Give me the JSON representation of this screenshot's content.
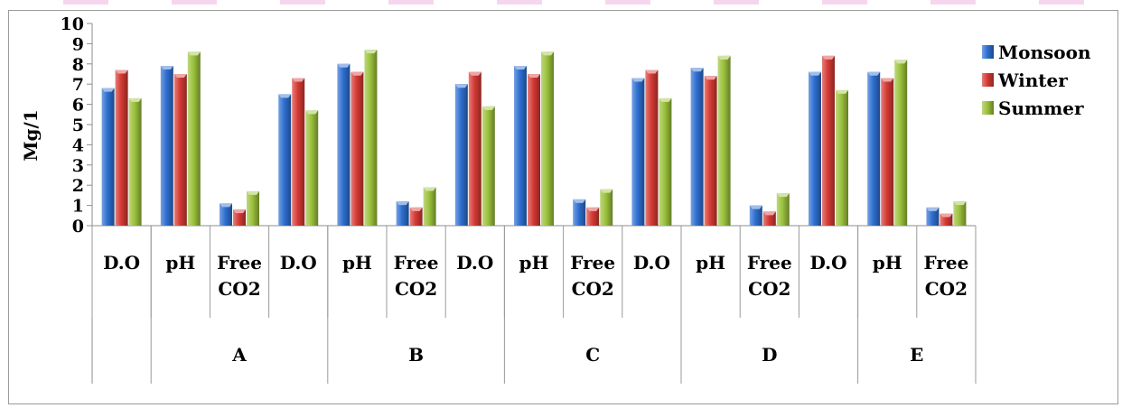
{
  "chart_data": {
    "type": "bar",
    "ylabel": "Mg/1",
    "ylim": [
      0,
      10
    ],
    "yticks": [
      0,
      1,
      2,
      3,
      4,
      5,
      6,
      7,
      8,
      9,
      10
    ],
    "grid": false,
    "legend_position": "right",
    "categories": [
      [
        "D.O"
      ],
      [
        "pH"
      ],
      [
        "Free",
        "CO2"
      ],
      [
        "D.O"
      ],
      [
        "pH"
      ],
      [
        "Free",
        "CO2"
      ],
      [
        "D.O"
      ],
      [
        "pH"
      ],
      [
        "Free",
        "CO2"
      ],
      [
        "D.O"
      ],
      [
        "pH"
      ],
      [
        "Free",
        "CO2"
      ],
      [
        "D.O"
      ],
      [
        "pH"
      ],
      [
        "Free",
        "CO2"
      ]
    ],
    "groups": [
      {
        "label": "",
        "span": 1
      },
      {
        "label": "A",
        "span": 3
      },
      {
        "label": "B",
        "span": 3
      },
      {
        "label": "C",
        "span": 3
      },
      {
        "label": "D",
        "span": 3
      },
      {
        "label": "E",
        "span": 2
      }
    ],
    "series": [
      {
        "name": "Monsoon",
        "color": "#2e6fd1",
        "values": [
          6.8,
          7.9,
          1.1,
          6.5,
          8.0,
          1.2,
          7.0,
          7.9,
          1.3,
          7.3,
          7.8,
          1.0,
          7.6,
          7.6,
          0.9
        ]
      },
      {
        "name": "Winter",
        "color": "#d63a34",
        "values": [
          7.7,
          7.5,
          0.8,
          7.3,
          7.6,
          0.9,
          7.6,
          7.5,
          0.9,
          7.7,
          7.4,
          0.7,
          8.4,
          7.3,
          0.6
        ]
      },
      {
        "name": "Summer",
        "color": "#9bc23c",
        "values": [
          6.3,
          8.6,
          1.7,
          5.7,
          8.7,
          1.9,
          5.9,
          8.6,
          1.8,
          6.3,
          8.4,
          1.6,
          6.7,
          8.2,
          1.2
        ]
      }
    ]
  }
}
